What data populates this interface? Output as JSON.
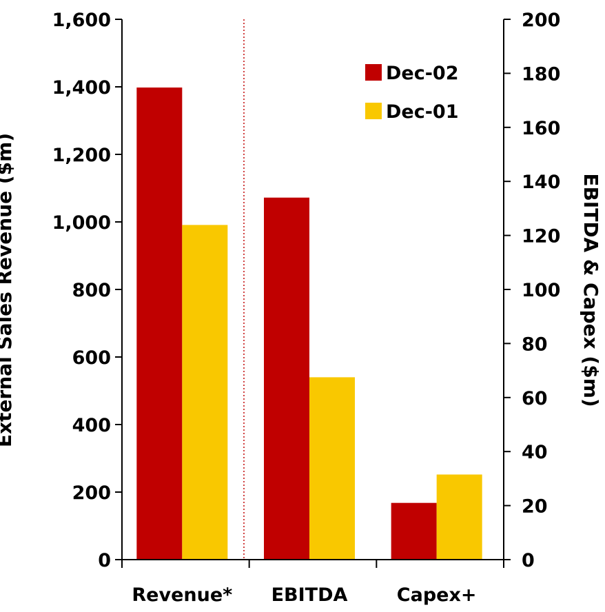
{
  "chart_data": {
    "type": "bar",
    "categories": [
      "Revenue*",
      "EBITDA",
      "Capex+"
    ],
    "series": [
      {
        "name": "Dec-02",
        "color": "#c00000",
        "values": [
          1398,
          134,
          21
        ]
      },
      {
        "name": "Dec-01",
        "color": "#f9c800",
        "values": [
          991,
          67.5,
          31.5
        ]
      }
    ],
    "series_axis": [
      "left",
      "right",
      "right"
    ],
    "y_left": {
      "label": "External Sales Revenue ($m)",
      "ylim": [
        0,
        1600
      ],
      "ticks": [
        0,
        200,
        400,
        600,
        800,
        1000,
        1200,
        1400,
        1600
      ],
      "tick_labels": [
        "0",
        "200",
        "400",
        "600",
        "800",
        "1,000",
        "1,200",
        "1,400",
        "1,600"
      ]
    },
    "y_right": {
      "label": "EBITDA & Capex ($m)",
      "ylim": [
        0,
        200
      ],
      "ticks": [
        0,
        20,
        40,
        60,
        80,
        100,
        120,
        140,
        160,
        180,
        200
      ],
      "tick_labels": [
        "0",
        "20",
        "40",
        "60",
        "80",
        "100",
        "120",
        "140",
        "160",
        "180",
        "200"
      ]
    },
    "divider_color": "#c00000",
    "grid": false,
    "legend": "top-right"
  }
}
